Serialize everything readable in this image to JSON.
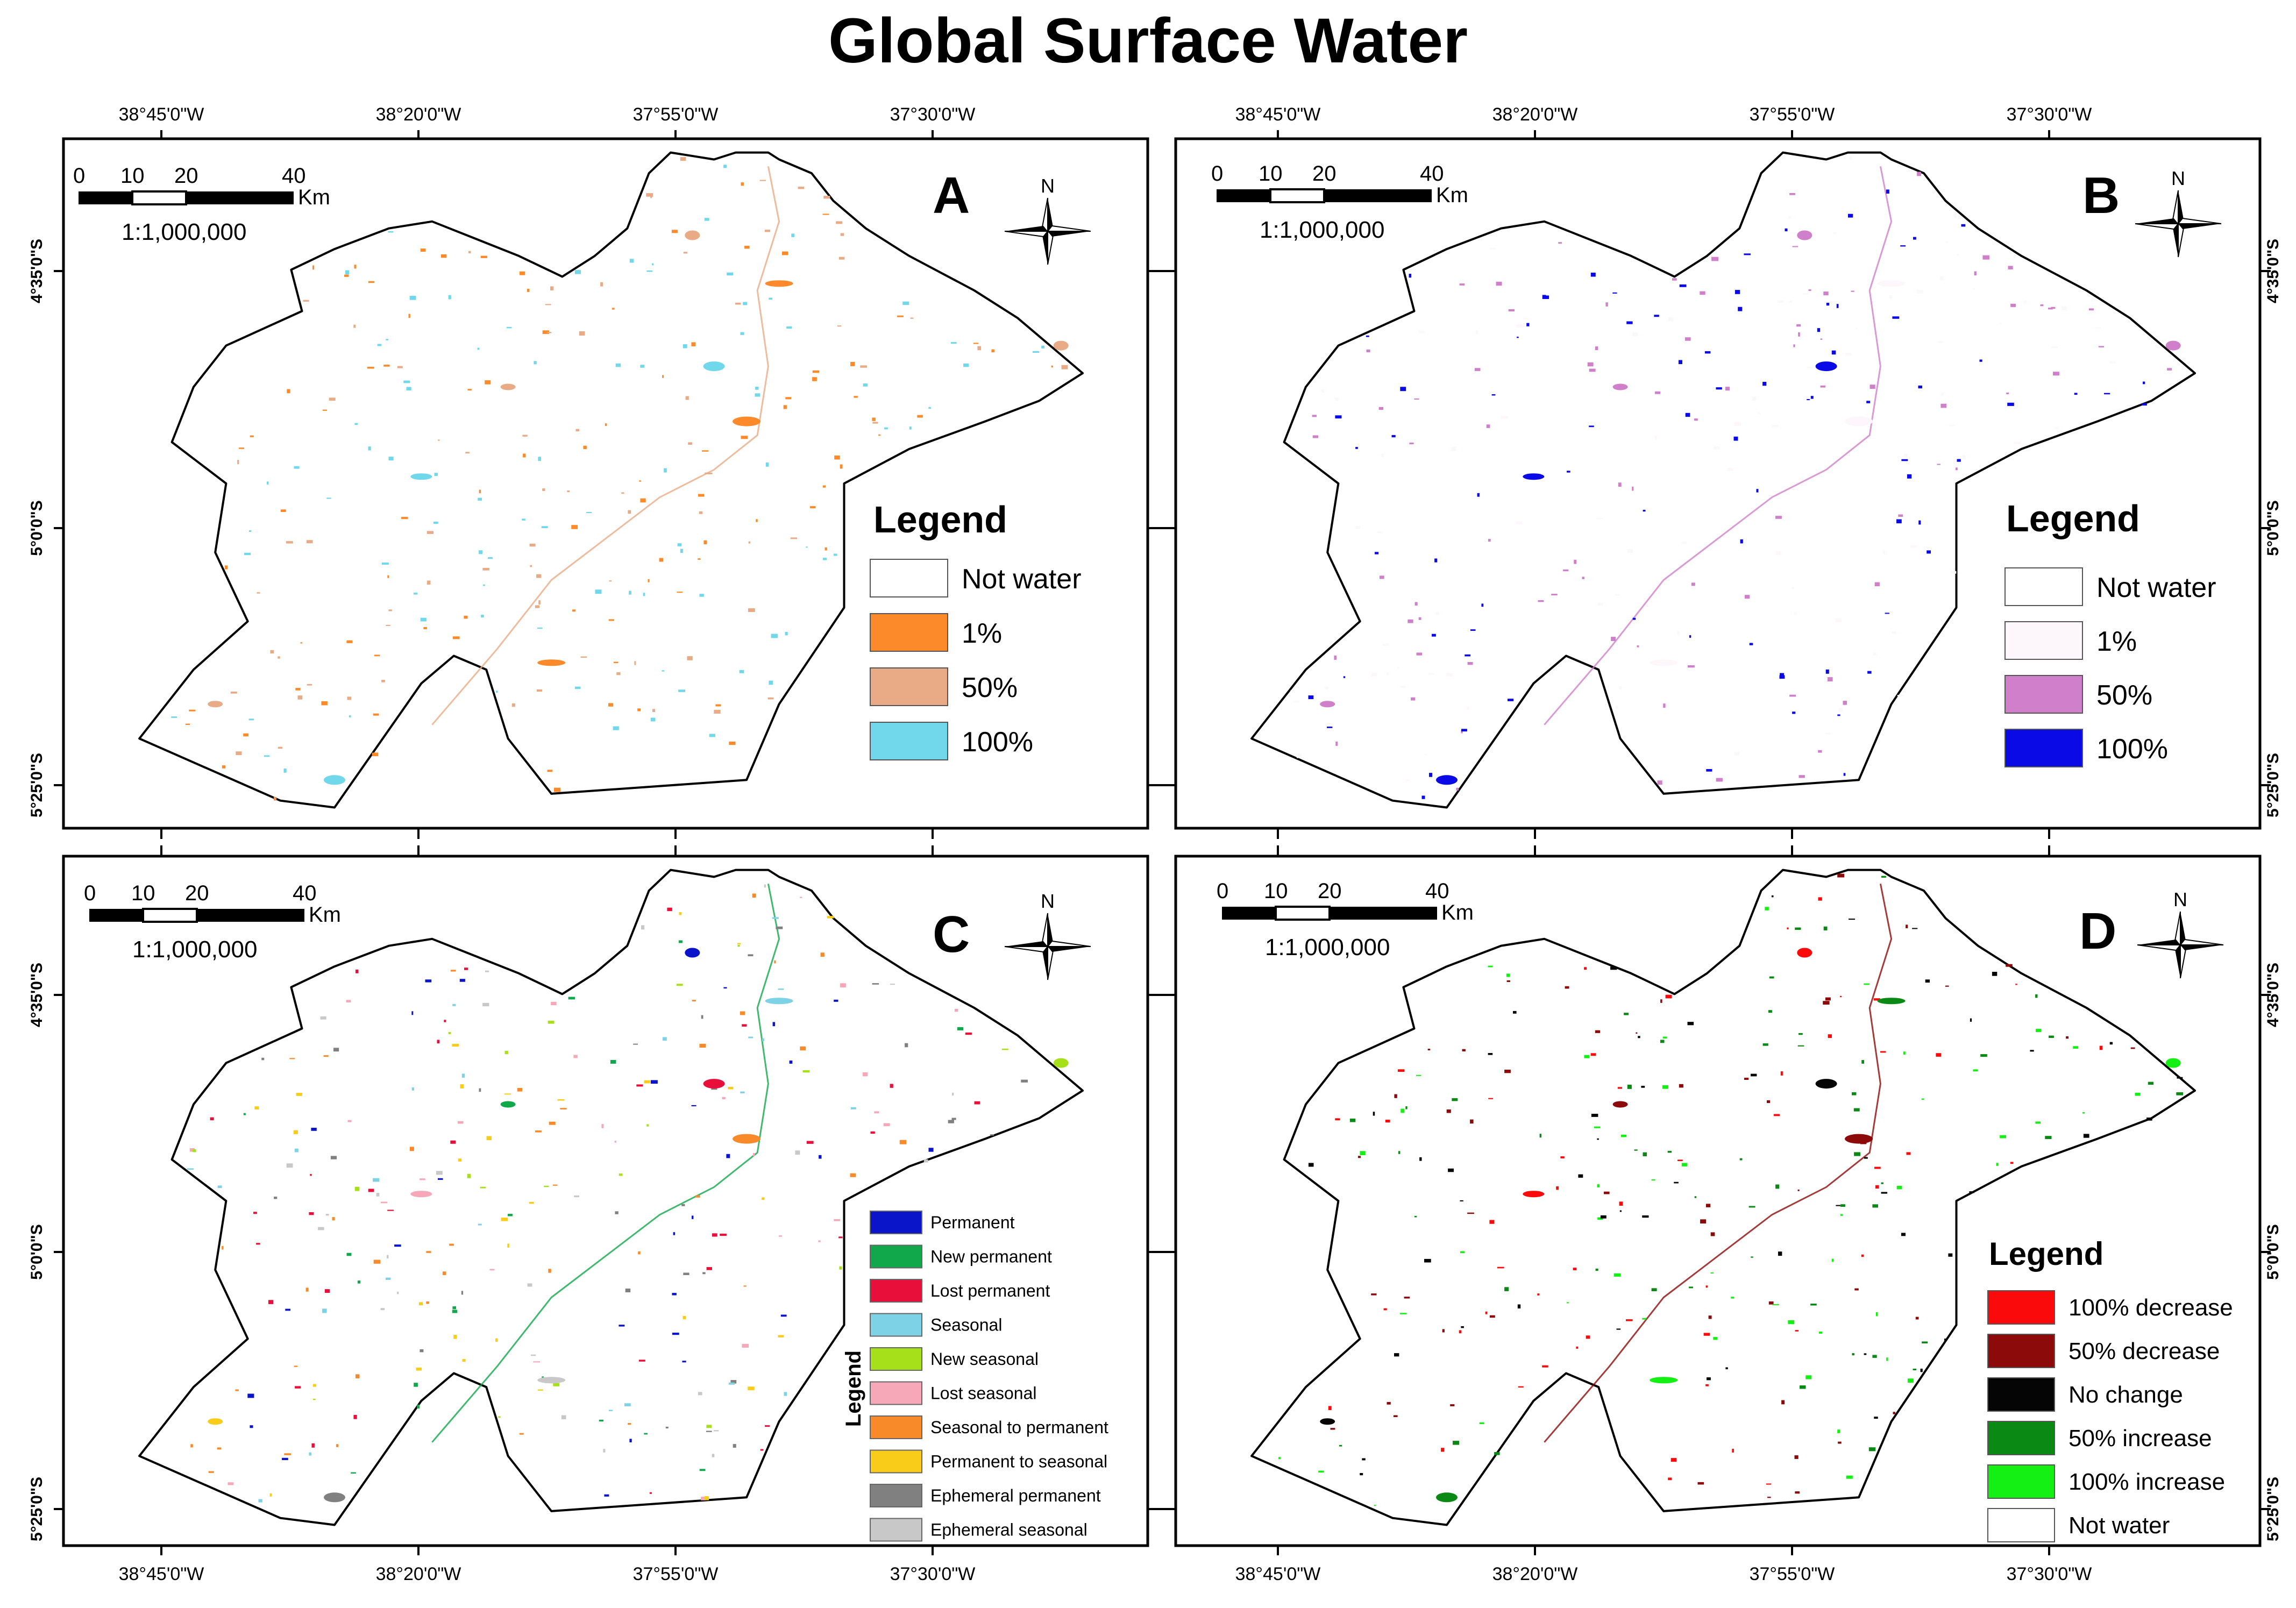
{
  "title": "Global Surface Water",
  "axes": {
    "lon_labels": [
      "38°45'0\"W",
      "38°20'0\"W",
      "37°55'0\"W",
      "37°30'0\"W"
    ],
    "lat_labels": [
      "4°35'0\"S",
      "5°0'0\"S",
      "5°25'0\"S"
    ]
  },
  "scalebar": {
    "ticks": [
      "0",
      "10",
      "20",
      "40"
    ],
    "unit": "Km",
    "ratio": "1:1,000,000"
  },
  "north_label": "N",
  "panels": [
    {
      "id": "A",
      "legend_title": "Legend",
      "legend_items": [
        {
          "label": "Not water",
          "color": "#ffffff"
        },
        {
          "label": "1%",
          "color": "#fd8a2a"
        },
        {
          "label": "50%",
          "color": "#e8ab86"
        },
        {
          "label": "100%",
          "color": "#71d7ea"
        }
      ]
    },
    {
      "id": "B",
      "legend_title": "Legend",
      "legend_items": [
        {
          "label": "Not water",
          "color": "#ffffff"
        },
        {
          "label": "1%",
          "color": "#fdf7fb"
        },
        {
          "label": "50%",
          "color": "#d07fca"
        },
        {
          "label": "100%",
          "color": "#0a0ae6"
        }
      ]
    },
    {
      "id": "C",
      "legend_title": "Legend",
      "legend_items": [
        {
          "label": "Permanent",
          "color": "#0a14c8"
        },
        {
          "label": "New permanent",
          "color": "#10a84a"
        },
        {
          "label": "Lost permanent",
          "color": "#e8103a"
        },
        {
          "label": "Seasonal",
          "color": "#7ed2e6"
        },
        {
          "label": "New seasonal",
          "color": "#a6e01a"
        },
        {
          "label": "Lost seasonal",
          "color": "#f6a8b8"
        },
        {
          "label": "Seasonal to permanent",
          "color": "#f88a2a"
        },
        {
          "label": "Permanent to seasonal",
          "color": "#f8cc18"
        },
        {
          "label": "Ephemeral permanent",
          "color": "#808080"
        },
        {
          "label": "Ephemeral seasonal",
          "color": "#c8c8c8"
        }
      ]
    },
    {
      "id": "D",
      "legend_title": "Legend",
      "legend_items": [
        {
          "label": "100% decrease",
          "color": "#fa0a0a"
        },
        {
          "label": "50% decrease",
          "color": "#8c0a0a"
        },
        {
          "label": "No change",
          "color": "#050505"
        },
        {
          "label": "50% increase",
          "color": "#0a8a14"
        },
        {
          "label": "100% increase",
          "color": "#14f014"
        },
        {
          "label": "Not water",
          "color": "#ffffff"
        }
      ]
    }
  ]
}
